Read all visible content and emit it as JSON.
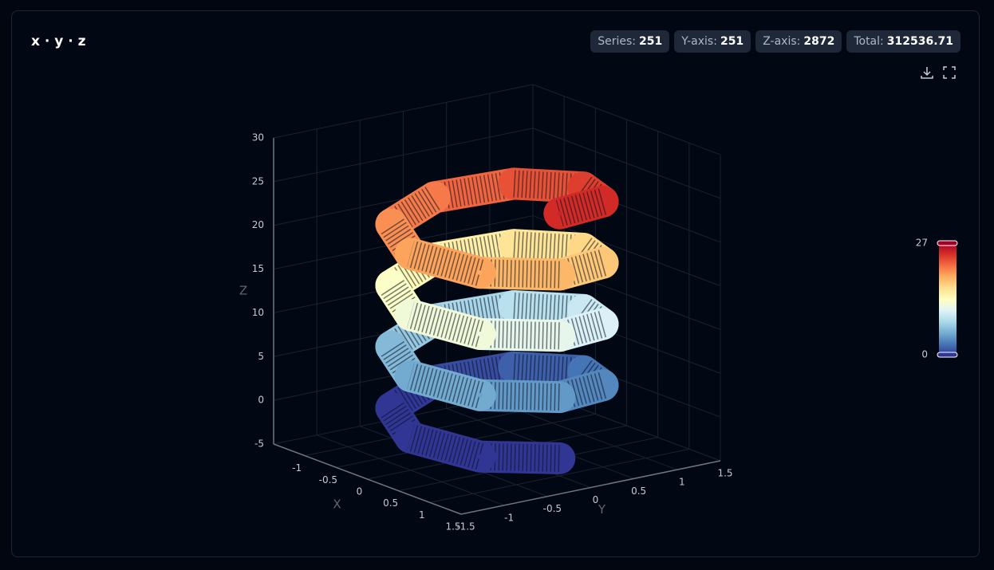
{
  "header": {
    "title": "x · y · z",
    "stats": [
      {
        "label": "Series:",
        "value": 251
      },
      {
        "label": "Y-axis:",
        "value": 251
      },
      {
        "label": "Z-axis:",
        "value": 2872
      },
      {
        "label": "Total:",
        "value": 312536.71
      }
    ]
  },
  "chart_data": {
    "type": "scatter3d",
    "x_label": "X",
    "y_label": "Y",
    "z_label": "Z",
    "xlim": [
      -1.5,
      1.5
    ],
    "ylim": [
      -1.5,
      1.5
    ],
    "zlim": [
      -5,
      30
    ],
    "xticks": [
      -1,
      -0.5,
      0,
      0.5,
      1,
      1.5
    ],
    "yticks": [
      -1.5,
      -1,
      -0.5,
      0,
      0.5,
      1,
      1.5
    ],
    "zticks": [
      -5,
      0,
      5,
      10,
      15,
      20,
      25,
      30
    ],
    "grid": true,
    "colorscale": [
      "#313695",
      "#4575b4",
      "#74add1",
      "#abd9e9",
      "#e0f3f8",
      "#ffffbf",
      "#fee090",
      "#fdae61",
      "#f46d43",
      "#d73027",
      "#a50026"
    ],
    "colorbar": {
      "min": 0,
      "max": 27
    },
    "x": [
      1,
      0.71,
      0,
      -0.71,
      -1,
      -0.71,
      0,
      0.71,
      1,
      0.71,
      0,
      -0.71,
      -1,
      -0.71,
      0,
      0.71,
      1,
      0.71,
      0,
      -0.71,
      -1,
      -0.71,
      0,
      0.71,
      1,
      0.71,
      0,
      -0.71,
      -1,
      -0.71,
      0,
      0.71,
      1
    ],
    "y": [
      0,
      -0.71,
      -1,
      -0.71,
      0,
      0.71,
      1,
      0.71,
      0,
      -0.71,
      -1,
      -0.71,
      0,
      0.71,
      1,
      0.71,
      0,
      -0.71,
      -1,
      -0.71,
      0,
      0.71,
      1,
      0.71,
      0,
      -0.71,
      -1,
      -0.71,
      0,
      0.71,
      1,
      0.71,
      0
    ],
    "z": [
      -3,
      -2.13,
      -1.25,
      -0.38,
      0.5,
      1.38,
      2.25,
      3.13,
      4,
      4.88,
      5.75,
      6.63,
      7.5,
      8.38,
      9.25,
      10.13,
      11,
      11.88,
      12.75,
      13.63,
      14.5,
      15.38,
      16.25,
      17.13,
      18,
      18.88,
      19.75,
      20.63,
      21.5,
      22.38,
      23.25,
      24.13,
      25
    ]
  }
}
